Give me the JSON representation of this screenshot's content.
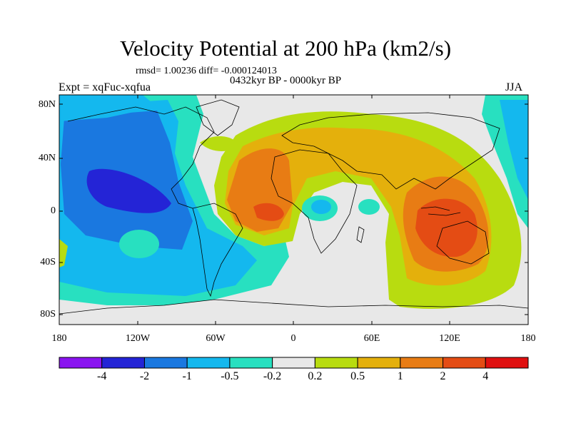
{
  "title": "Velocity Potential at 200 hPa (km2/s)",
  "stats": "rmsd= 1.00236 diff= -0.000124013",
  "period": "0432kyr BP - 0000kyr BP",
  "experiment": "Expt = xqFuc-xqfua",
  "season": "JJA",
  "lat_labels": [
    "80N",
    "40N",
    "0",
    "40S",
    "80S"
  ],
  "lon_labels": [
    "180",
    "120W",
    "60W",
    "0",
    "60E",
    "120E",
    "180"
  ],
  "colorbar": {
    "labels": [
      "-4",
      "-2",
      "-1",
      "-0.5",
      "-0.2",
      "0.2",
      "0.5",
      "1",
      "2",
      "4"
    ],
    "colors": [
      "#8a14f0",
      "#2424d6",
      "#1a78e0",
      "#14b8ee",
      "#28e0c0",
      "#e8e8e8",
      "#b8dc10",
      "#e4b00c",
      "#e87c14",
      "#e44c14",
      "#e01010"
    ]
  }
}
